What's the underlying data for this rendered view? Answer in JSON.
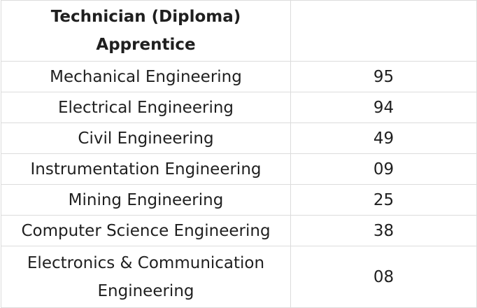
{
  "table": {
    "header": {
      "col1": "Technician (Diploma) Apprentice",
      "col2": ""
    },
    "rows": [
      {
        "branch": "Mechanical Engineering",
        "count": "95"
      },
      {
        "branch": "Electrical Engineering",
        "count": "94"
      },
      {
        "branch": "Civil Engineering",
        "count": "49"
      },
      {
        "branch": "Instrumentation Engineering",
        "count": "09"
      },
      {
        "branch": "Mining Engineering",
        "count": "25"
      },
      {
        "branch": "Computer Science Engineering",
        "count": "38"
      },
      {
        "branch": "Electronics & Communication Engineering",
        "count": "08"
      }
    ]
  }
}
